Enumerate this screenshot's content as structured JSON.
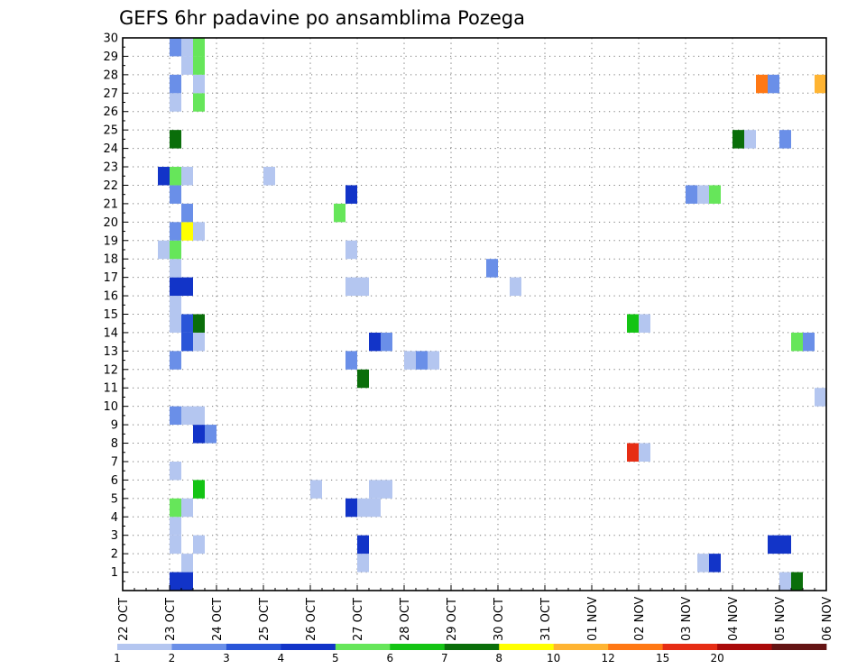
{
  "chart_data": {
    "type": "heatmap",
    "title": "GEFS 6hr padavine po ansamblima Pozega",
    "xlabel": "",
    "ylabel": "",
    "x_ticks": [
      "22 OCT",
      "23 OCT",
      "24 OCT",
      "25 OCT",
      "26 OCT",
      "27 OCT",
      "28 OCT",
      "29 OCT",
      "30 OCT",
      "31 OCT",
      "01 NOV",
      "02 NOV",
      "03 NOV",
      "04 NOV",
      "05 NOV",
      "06 NOV"
    ],
    "y_ticks": [
      "1",
      "2",
      "3",
      "4",
      "5",
      "6",
      "7",
      "8",
      "9",
      "10",
      "11",
      "12",
      "13",
      "14",
      "15",
      "16",
      "17",
      "18",
      "19",
      "20",
      "21",
      "22",
      "23",
      "24",
      "25",
      "26",
      "27",
      "28",
      "29",
      "30"
    ],
    "x_unit": "6-hour step (4 steps per day, 0 = 22 OCT 00Z)",
    "xlim": [
      0,
      60
    ],
    "ylim": [
      0,
      30
    ],
    "grid": true,
    "colorbar": {
      "levels": [
        "1",
        "2",
        "3",
        "4",
        "5",
        "6",
        "7",
        "8",
        "10",
        "12",
        "15",
        "20"
      ],
      "colors": [
        "#b4c6f0",
        "#6a8fe8",
        "#2a55d8",
        "#1234c8",
        "#66e65a",
        "#14c414",
        "#0a6e0a",
        "#ffff00",
        "#ffb432",
        "#ff7814",
        "#e62d14",
        "#aa0a0a",
        "#641414"
      ]
    },
    "cells": [
      {
        "m": 0,
        "t": 4,
        "v": 4
      },
      {
        "m": 0,
        "t": 5,
        "v": 4
      },
      {
        "m": 0,
        "t": 56,
        "v": 1
      },
      {
        "m": 0,
        "t": 57,
        "v": 7
      },
      {
        "m": 1,
        "t": 5,
        "v": 1
      },
      {
        "m": 1,
        "t": 20,
        "v": 1
      },
      {
        "m": 1,
        "t": 49,
        "v": 1
      },
      {
        "m": 1,
        "t": 50,
        "v": 4
      },
      {
        "m": 2,
        "t": 4,
        "v": 1
      },
      {
        "m": 2,
        "t": 6,
        "v": 1
      },
      {
        "m": 2,
        "t": 20,
        "v": 4
      },
      {
        "m": 2,
        "t": 55,
        "v": 4
      },
      {
        "m": 2,
        "t": 56,
        "v": 4
      },
      {
        "m": 3,
        "t": 4,
        "v": 1
      },
      {
        "m": 4,
        "t": 4,
        "v": 5
      },
      {
        "m": 4,
        "t": 5,
        "v": 1
      },
      {
        "m": 4,
        "t": 19,
        "v": 4
      },
      {
        "m": 4,
        "t": 20,
        "v": 1
      },
      {
        "m": 4,
        "t": 21,
        "v": 1
      },
      {
        "m": 5,
        "t": 6,
        "v": 6
      },
      {
        "m": 5,
        "t": 16,
        "v": 1
      },
      {
        "m": 5,
        "t": 21,
        "v": 1
      },
      {
        "m": 5,
        "t": 22,
        "v": 1
      },
      {
        "m": 6,
        "t": 4,
        "v": 1
      },
      {
        "m": 7,
        "t": 43,
        "v": 15
      },
      {
        "m": 7,
        "t": 44,
        "v": 1
      },
      {
        "m": 8,
        "t": 6,
        "v": 4
      },
      {
        "m": 8,
        "t": 7,
        "v": 2
      },
      {
        "m": 9,
        "t": 4,
        "v": 2
      },
      {
        "m": 9,
        "t": 5,
        "v": 1
      },
      {
        "m": 9,
        "t": 6,
        "v": 1
      },
      {
        "m": 10,
        "t": 59,
        "v": 1
      },
      {
        "m": 11,
        "t": 20,
        "v": 7
      },
      {
        "m": 12,
        "t": 4,
        "v": 2
      },
      {
        "m": 12,
        "t": 19,
        "v": 2
      },
      {
        "m": 12,
        "t": 24,
        "v": 1
      },
      {
        "m": 12,
        "t": 25,
        "v": 2
      },
      {
        "m": 12,
        "t": 26,
        "v": 1
      },
      {
        "m": 13,
        "t": 5,
        "v": 3
      },
      {
        "m": 13,
        "t": 6,
        "v": 1
      },
      {
        "m": 13,
        "t": 21,
        "v": 4
      },
      {
        "m": 13,
        "t": 22,
        "v": 2
      },
      {
        "m": 13,
        "t": 57,
        "v": 5
      },
      {
        "m": 13,
        "t": 58,
        "v": 2
      },
      {
        "m": 14,
        "t": 4,
        "v": 1
      },
      {
        "m": 14,
        "t": 5,
        "v": 3
      },
      {
        "m": 14,
        "t": 6,
        "v": 7
      },
      {
        "m": 14,
        "t": 43,
        "v": 6
      },
      {
        "m": 14,
        "t": 44,
        "v": 1
      },
      {
        "m": 15,
        "t": 4,
        "v": 1
      },
      {
        "m": 16,
        "t": 4,
        "v": 4
      },
      {
        "m": 16,
        "t": 5,
        "v": 4
      },
      {
        "m": 16,
        "t": 19,
        "v": 1
      },
      {
        "m": 16,
        "t": 20,
        "v": 1
      },
      {
        "m": 16,
        "t": 33,
        "v": 1
      },
      {
        "m": 17,
        "t": 4,
        "v": 1
      },
      {
        "m": 17,
        "t": 31,
        "v": 2
      },
      {
        "m": 18,
        "t": 3,
        "v": 1
      },
      {
        "m": 18,
        "t": 4,
        "v": 5
      },
      {
        "m": 18,
        "t": 19,
        "v": 1
      },
      {
        "m": 19,
        "t": 4,
        "v": 2
      },
      {
        "m": 19,
        "t": 5,
        "v": 8
      },
      {
        "m": 19,
        "t": 6,
        "v": 1
      },
      {
        "m": 20,
        "t": 5,
        "v": 2
      },
      {
        "m": 20,
        "t": 18,
        "v": 5
      },
      {
        "m": 21,
        "t": 4,
        "v": 2
      },
      {
        "m": 21,
        "t": 19,
        "v": 4
      },
      {
        "m": 21,
        "t": 48,
        "v": 2
      },
      {
        "m": 21,
        "t": 49,
        "v": 1
      },
      {
        "m": 21,
        "t": 50,
        "v": 5
      },
      {
        "m": 22,
        "t": 3,
        "v": 4
      },
      {
        "m": 22,
        "t": 4,
        "v": 5
      },
      {
        "m": 22,
        "t": 5,
        "v": 1
      },
      {
        "m": 22,
        "t": 12,
        "v": 1
      },
      {
        "m": 24,
        "t": 4,
        "v": 7
      },
      {
        "m": 24,
        "t": 52,
        "v": 7
      },
      {
        "m": 24,
        "t": 53,
        "v": 1
      },
      {
        "m": 24,
        "t": 56,
        "v": 2
      },
      {
        "m": 26,
        "t": 4,
        "v": 1
      },
      {
        "m": 26,
        "t": 6,
        "v": 5
      },
      {
        "m": 27,
        "t": 4,
        "v": 2
      },
      {
        "m": 27,
        "t": 6,
        "v": 1
      },
      {
        "m": 27,
        "t": 54,
        "v": 12
      },
      {
        "m": 27,
        "t": 55,
        "v": 2
      },
      {
        "m": 27,
        "t": 59,
        "v": 10
      },
      {
        "m": 28,
        "t": 5,
        "v": 1
      },
      {
        "m": 28,
        "t": 6,
        "v": 5
      },
      {
        "m": 29,
        "t": 4,
        "v": 2
      },
      {
        "m": 29,
        "t": 5,
        "v": 1
      },
      {
        "m": 29,
        "t": 6,
        "v": 5
      }
    ]
  }
}
